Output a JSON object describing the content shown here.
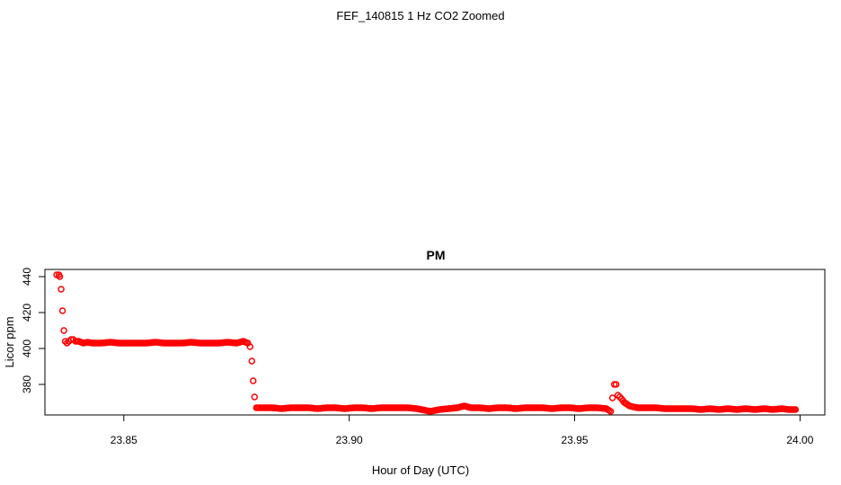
{
  "figure": {
    "suptitle": "FEF_140815  1 Hz CO2 Zoomed"
  },
  "chart_data": {
    "type": "scatter",
    "title": "PM",
    "xlabel": "Hour of Day (UTC)",
    "ylabel": "Licor ppm",
    "xlim": [
      23.8325,
      24.0055
    ],
    "ylim": [
      363,
      444
    ],
    "xticks": [
      23.85,
      23.9,
      23.95,
      24.0
    ],
    "xtick_labels": [
      "23.85",
      "23.90",
      "23.95",
      "24.00"
    ],
    "yticks": [
      380,
      400,
      420,
      440
    ],
    "ytick_labels": [
      "380",
      "400",
      "420",
      "440"
    ],
    "grid": false,
    "legend": "none",
    "marker": "open-circle",
    "color": "#ff0000",
    "series": [
      {
        "points": [
          [
            23.8351,
            441
          ],
          [
            23.8356,
            441
          ],
          [
            23.8358,
            440
          ],
          [
            23.8361,
            433
          ],
          [
            23.8364,
            421
          ],
          [
            23.8367,
            410
          ],
          [
            23.837,
            404
          ],
          [
            23.8374,
            403
          ],
          [
            23.8378,
            404
          ],
          [
            23.8383,
            405
          ],
          [
            23.8388,
            405
          ],
          [
            23.8393,
            404
          ],
          [
            23.84,
            404
          ],
          [
            23.841,
            403
          ],
          [
            23.842,
            403.5
          ],
          [
            23.843,
            403
          ],
          [
            23.845,
            403
          ],
          [
            23.847,
            403.5
          ],
          [
            23.849,
            403
          ],
          [
            23.851,
            403
          ],
          [
            23.853,
            403
          ],
          [
            23.855,
            403
          ],
          [
            23.857,
            403.5
          ],
          [
            23.859,
            403
          ],
          [
            23.861,
            403
          ],
          [
            23.863,
            403
          ],
          [
            23.865,
            403.5
          ],
          [
            23.867,
            403
          ],
          [
            23.869,
            403
          ],
          [
            23.871,
            403
          ],
          [
            23.873,
            403.5
          ],
          [
            23.875,
            403
          ],
          [
            23.8765,
            404
          ],
          [
            23.8775,
            403
          ],
          [
            23.878,
            401
          ],
          [
            23.8784,
            393
          ],
          [
            23.8787,
            382
          ],
          [
            23.879,
            373
          ],
          [
            23.8794,
            367
          ],
          [
            23.88,
            367
          ],
          [
            23.881,
            367
          ],
          [
            23.883,
            367
          ],
          [
            23.885,
            366.5
          ],
          [
            23.887,
            367
          ],
          [
            23.889,
            367
          ],
          [
            23.891,
            367
          ],
          [
            23.893,
            366.5
          ],
          [
            23.895,
            367
          ],
          [
            23.897,
            367
          ],
          [
            23.899,
            366.5
          ],
          [
            23.901,
            367
          ],
          [
            23.903,
            367
          ],
          [
            23.905,
            366.5
          ],
          [
            23.907,
            367
          ],
          [
            23.909,
            367
          ],
          [
            23.911,
            367
          ],
          [
            23.913,
            367
          ],
          [
            23.915,
            366.5
          ],
          [
            23.917,
            365.5
          ],
          [
            23.918,
            365
          ],
          [
            23.919,
            365.5
          ],
          [
            23.92,
            366
          ],
          [
            23.922,
            366.5
          ],
          [
            23.924,
            367
          ],
          [
            23.9255,
            368
          ],
          [
            23.927,
            367
          ],
          [
            23.929,
            367
          ],
          [
            23.931,
            366.5
          ],
          [
            23.933,
            367
          ],
          [
            23.935,
            367
          ],
          [
            23.937,
            366.5
          ],
          [
            23.939,
            367
          ],
          [
            23.941,
            367
          ],
          [
            23.943,
            367
          ],
          [
            23.945,
            366.5
          ],
          [
            23.947,
            367
          ],
          [
            23.949,
            367
          ],
          [
            23.951,
            366.5
          ],
          [
            23.953,
            367
          ],
          [
            23.955,
            367
          ],
          [
            23.957,
            366.5
          ],
          [
            23.958,
            365
          ],
          [
            23.9588,
            380
          ],
          [
            23.9592,
            380
          ],
          [
            23.9596,
            374
          ],
          [
            23.96,
            373
          ],
          [
            23.9604,
            372
          ],
          [
            23.961,
            370
          ],
          [
            23.9616,
            369
          ],
          [
            23.9622,
            368
          ],
          [
            23.963,
            367.5
          ],
          [
            23.964,
            367
          ],
          [
            23.966,
            367
          ],
          [
            23.968,
            367
          ],
          [
            23.97,
            366.5
          ],
          [
            23.972,
            366.5
          ],
          [
            23.974,
            366.5
          ],
          [
            23.976,
            366.5
          ],
          [
            23.978,
            366
          ],
          [
            23.98,
            366.5
          ],
          [
            23.982,
            366
          ],
          [
            23.984,
            366.5
          ],
          [
            23.986,
            366
          ],
          [
            23.988,
            366.5
          ],
          [
            23.99,
            366
          ],
          [
            23.992,
            366.5
          ],
          [
            23.994,
            366
          ],
          [
            23.996,
            366.5
          ],
          [
            23.9975,
            366
          ],
          [
            23.999,
            366
          ]
        ]
      }
    ]
  }
}
